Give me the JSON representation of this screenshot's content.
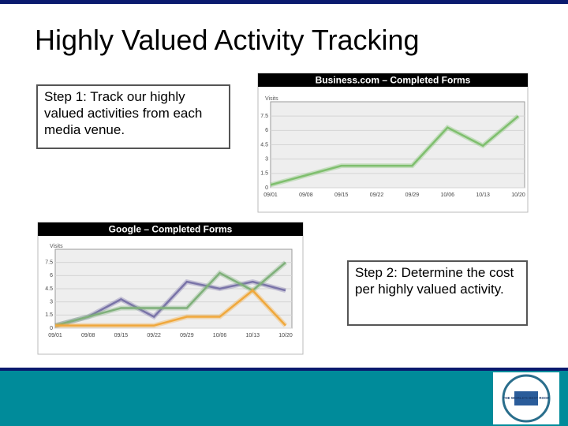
{
  "title": "Highly Valued Activity Tracking",
  "steps": [
    "Step 1: Track our highly valued activities from each media venue.",
    "Step 2: Determine the cost per highly valued activity."
  ],
  "logo_text": "THE WORLD'S BEST ROOF",
  "chart_data": [
    {
      "type": "line",
      "title": "Business.com – Completed Forms",
      "y_label": "Visits",
      "categories": [
        "09/01",
        "09/08",
        "09/15",
        "09/22",
        "09/29",
        "10/06",
        "10/13",
        "10/20"
      ],
      "series": [
        {
          "color": "#7fbf6e",
          "values": [
            0.3,
            1.3,
            2.3,
            2.3,
            2.3,
            6.3,
            4.4,
            7.5
          ]
        }
      ],
      "ylim": [
        0,
        9
      ],
      "yticks": [
        0,
        1.5,
        3,
        4.5,
        6,
        7.5
      ],
      "grid": true
    },
    {
      "type": "line",
      "title": "Google – Completed Forms",
      "y_label": "Visits",
      "categories": [
        "09/01",
        "09/08",
        "09/15",
        "09/22",
        "09/29",
        "10/06",
        "10/13",
        "10/20"
      ],
      "series": [
        {
          "color": "#7a74a8",
          "values": [
            0.3,
            1.3,
            3.3,
            1.3,
            5.3,
            4.5,
            5.3,
            4.3
          ]
        },
        {
          "color": "#7fb07a",
          "values": [
            0.3,
            1.3,
            2.3,
            2.3,
            2.3,
            6.3,
            4.3,
            7.5
          ]
        },
        {
          "color": "#f0a83c",
          "values": [
            0.3,
            0.3,
            0.3,
            0.3,
            1.3,
            1.3,
            4.3,
            0.3
          ]
        }
      ],
      "ylim": [
        0,
        9
      ],
      "yticks": [
        0,
        1.5,
        3,
        4.5,
        6,
        7.5
      ],
      "grid": true
    }
  ]
}
